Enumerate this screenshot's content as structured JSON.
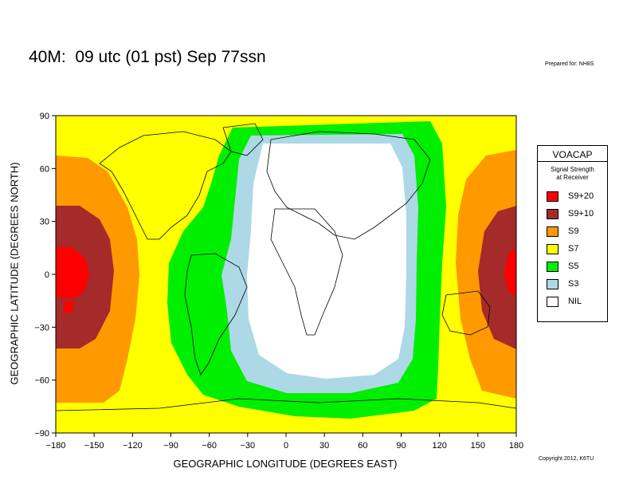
{
  "header": {
    "title": "40M:  09 utc (01 pst) Sep 77ssn",
    "prepared_for": "Prepared for: NH8S"
  },
  "footer": {
    "copyright": "Copyright 2012, K6TU"
  },
  "chart_data": {
    "type": "heatmap",
    "title": "40M:  09 utc (01 pst) Sep 77ssn",
    "xlabel": "GEOGRAPHIC LONGITUDE (DEGREES EAST)",
    "ylabel": "GEOGRAPHIC LATITUDE (DEGREES NORTH)",
    "xlim": [
      -180,
      180
    ],
    "ylim": [
      -90,
      90
    ],
    "xticks": [
      "−180",
      "−150",
      "−120",
      "−90",
      "−60",
      "−30",
      "0",
      "30",
      "60",
      "90",
      "120",
      "150",
      "180"
    ],
    "xtick_values": [
      -180,
      -150,
      -120,
      -90,
      -60,
      -30,
      0,
      30,
      60,
      90,
      120,
      150,
      180
    ],
    "yticks": [
      "90",
      "60",
      "30",
      "0",
      "−30",
      "−60",
      "−90"
    ],
    "ytick_values": [
      90,
      60,
      30,
      0,
      -30,
      -60,
      -90
    ],
    "grid": false,
    "legend": {
      "placement": "right",
      "title": "VOACAP",
      "subtitle": [
        "Signal Strength",
        "at Receiver"
      ],
      "items": [
        {
          "label": "S9+20",
          "color": "#ff0000"
        },
        {
          "label": "S9+10",
          "color": "#a52a2a"
        },
        {
          "label": "S9",
          "color": "#ff9900"
        },
        {
          "label": "S7",
          "color": "#ffff00"
        },
        {
          "label": "S5",
          "color": "#00ee00"
        },
        {
          "label": "S3",
          "color": "#add8e6"
        },
        {
          "label": "NIL",
          "color": "#ffffff"
        }
      ]
    }
  }
}
